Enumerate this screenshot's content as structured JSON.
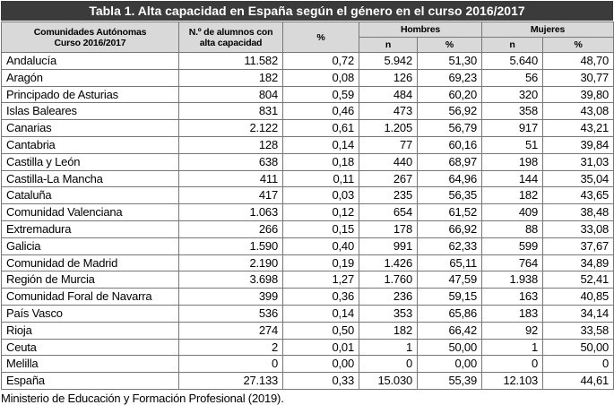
{
  "table": {
    "title": "Tabla 1. Alta capacidad en España según el género en el curso 2016/2017",
    "header": {
      "col1": [
        "Comunidades Autónomas",
        "Curso 2016/2017"
      ],
      "col2": [
        "N.º de alumnos con",
        "alta capacidad"
      ],
      "col3": "%",
      "hombres": "Hombres",
      "mujeres": "Mujeres",
      "sub": [
        "n",
        "%",
        "n",
        "%"
      ]
    },
    "rows": [
      [
        "Andalucía",
        "11.582",
        "0,72",
        "5.942",
        "51,30",
        "5.640",
        "48,70"
      ],
      [
        "Aragón",
        "182",
        "0,08",
        "126",
        "69,23",
        "56",
        "30,77"
      ],
      [
        "Principado de Asturias",
        "804",
        "0,59",
        "484",
        "60,20",
        "320",
        "39,80"
      ],
      [
        "Islas Baleares",
        "831",
        "0,46",
        "473",
        "56,92",
        "358",
        "43,08"
      ],
      [
        "Canarias",
        "2.122",
        "0,61",
        "1.205",
        "56,79",
        "917",
        "43,21"
      ],
      [
        "Cantabria",
        "128",
        "0,14",
        "77",
        "60,16",
        "51",
        "39,84"
      ],
      [
        "Castilla y León",
        "638",
        "0,18",
        "440",
        "68,97",
        "198",
        "31,03"
      ],
      [
        "Castilla-La Mancha",
        "411",
        "0,11",
        "267",
        "64,96",
        "144",
        "35,04"
      ],
      [
        "Cataluña",
        "417",
        "0,03",
        "235",
        "56,35",
        "182",
        "43,65"
      ],
      [
        "Comunidad Valenciana",
        "1.063",
        "0,12",
        "654",
        "61,52",
        "409",
        "38,48"
      ],
      [
        "Extremadura",
        "266",
        "0,15",
        "178",
        "66,92",
        "88",
        "33,08"
      ],
      [
        "Galicia",
        "1.590",
        "0,40",
        "991",
        "62,33",
        "599",
        "37,67"
      ],
      [
        "Comunidad de Madrid",
        "2.190",
        "0,19",
        "1.426",
        "65,11",
        "764",
        "34,89"
      ],
      [
        "Región de Murcia",
        "3.698",
        "1,27",
        "1.760",
        "47,59",
        "1.938",
        "52,41"
      ],
      [
        "Comunidad Foral de Navarra",
        "399",
        "0,36",
        "236",
        "59,15",
        "163",
        "40,85"
      ],
      [
        "País Vasco",
        "536",
        "0,14",
        "353",
        "65,86",
        "183",
        "34,14"
      ],
      [
        "Rioja",
        "274",
        "0,50",
        "182",
        "66,42",
        "92",
        "33,58"
      ],
      [
        "Ceuta",
        "2",
        "0,01",
        "1",
        "50,00",
        "1",
        "50,00"
      ],
      [
        "Melilla",
        "0",
        "0,00",
        "0",
        "0,00",
        "0",
        "0"
      ],
      [
        "España",
        "27.133",
        "0,33",
        "15.030",
        "55,39",
        "12.103",
        "44,61"
      ]
    ]
  },
  "source": "Ministerio de Educación y Formación Profesional (2019)."
}
